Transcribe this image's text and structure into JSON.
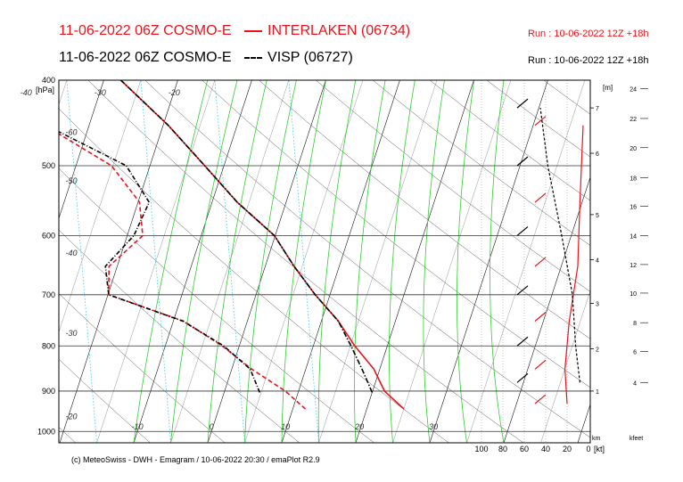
{
  "header": {
    "line1_left": "11-06-2022 06Z COSMO-E",
    "line1_right": "INTERLAKEN (06734)",
    "line2_left": "11-06-2022 06Z COSMO-E",
    "line2_right": "VISP (06727)",
    "run1": "Run : 10-06-2022 12Z +18h",
    "run2": "Run : 10-06-2022 12Z +18h"
  },
  "footer": "(c) MeteoSwiss - DWH - Emagram / 10-06-2022  20:30 / emaPlot R2.9",
  "colors": {
    "interlaken": "#e8141c",
    "visp": "#000000",
    "dry_adiabat": "#555555",
    "moist_adiabat": "#33cc33",
    "mixing_ratio": "#33ccee",
    "isobar": "#333333"
  },
  "chart_data": {
    "type": "line",
    "title": "Emagram",
    "pressure_axis": {
      "label": "[hPa]",
      "ticks": [
        400,
        500,
        600,
        700,
        800,
        900,
        1000
      ],
      "range": [
        1030,
        400
      ]
    },
    "temperature_axis": {
      "range": [
        -20,
        40
      ],
      "bottom_ticks": [
        -10,
        0,
        10,
        20,
        30
      ],
      "skew_labels_left": [
        -60,
        -50,
        -40,
        -30,
        -20
      ],
      "skew_labels_top": [
        -60,
        -50,
        -40,
        -30,
        -20
      ]
    },
    "height_axis_m": {
      "label": "[m]",
      "ticks": [
        {
          "label": "1",
          "p": 900
        },
        {
          "label": "2",
          "p": 806
        },
        {
          "label": "3",
          "p": 716
        },
        {
          "label": "4",
          "p": 639
        },
        {
          "label": "5",
          "p": 568
        },
        {
          "label": "6",
          "p": 484
        },
        {
          "label": "7",
          "p": 430
        }
      ],
      "bottom_label": "km"
    },
    "height_axis_feet": {
      "ticks": [
        {
          "label": "4",
          "p": 880
        },
        {
          "label": "6",
          "p": 812
        },
        {
          "label": "8",
          "p": 753
        },
        {
          "label": "10",
          "p": 697
        },
        {
          "label": "12",
          "p": 647
        },
        {
          "label": "14",
          "p": 600
        },
        {
          "label": "16",
          "p": 556
        },
        {
          "label": "18",
          "p": 516
        },
        {
          "label": "20",
          "p": 477
        },
        {
          "label": "22",
          "p": 442
        },
        {
          "label": "24",
          "p": 409
        }
      ],
      "bottom_label": "kfeet"
    },
    "wind_axis": {
      "label": "[kt]",
      "ticks": [
        100,
        80,
        60,
        40,
        20,
        0
      ]
    },
    "series": [
      {
        "name": "INTERLAKEN (06734)",
        "temperature": [
          {
            "p": 943,
            "t": 25.0
          },
          {
            "p": 900,
            "t": 21.6
          },
          {
            "p": 850,
            "t": 19.2
          },
          {
            "p": 800,
            "t": 15.6
          },
          {
            "p": 750,
            "t": 12.3
          },
          {
            "p": 700,
            "t": 8.0
          },
          {
            "p": 650,
            "t": 3.9
          },
          {
            "p": 600,
            "t": -0.1
          },
          {
            "p": 550,
            "t": -6.6
          },
          {
            "p": 500,
            "t": -12.6
          },
          {
            "p": 450,
            "t": -19.3
          },
          {
            "p": 400,
            "t": -27.7
          }
        ],
        "dewpoint": [
          {
            "p": 943,
            "t": 11.7
          },
          {
            "p": 900,
            "t": 8.2
          },
          {
            "p": 850,
            "t": 2.7
          },
          {
            "p": 800,
            "t": -2.3
          },
          {
            "p": 750,
            "t": -8.6
          },
          {
            "p": 700,
            "t": -19.9
          },
          {
            "p": 650,
            "t": -21.1
          },
          {
            "p": 600,
            "t": -17.9
          },
          {
            "p": 550,
            "t": -19.8
          },
          {
            "p": 500,
            "t": -25.2
          },
          {
            "p": 450,
            "t": -36.0
          },
          {
            "p": 400,
            "t": -45.0
          }
        ],
        "wind_speed_kt": [
          {
            "p": 930,
            "v": 20
          },
          {
            "p": 850,
            "v": 22
          },
          {
            "p": 750,
            "v": 18
          },
          {
            "p": 650,
            "v": 10
          },
          {
            "p": 550,
            "v": 8
          },
          {
            "p": 450,
            "v": 5
          }
        ]
      },
      {
        "name": "VISP (06727)",
        "temperature": [
          {
            "p": 903,
            "t": 20.0
          },
          {
            "p": 850,
            "t": 17.6
          },
          {
            "p": 800,
            "t": 15.1
          },
          {
            "p": 750,
            "t": 12.3
          },
          {
            "p": 700,
            "t": 8.0
          },
          {
            "p": 650,
            "t": 3.9
          },
          {
            "p": 600,
            "t": -0.1
          },
          {
            "p": 550,
            "t": -6.6
          },
          {
            "p": 500,
            "t": -12.6
          },
          {
            "p": 450,
            "t": -19.3
          },
          {
            "p": 400,
            "t": -27.7
          }
        ],
        "dewpoint": [
          {
            "p": 903,
            "t": 4.8
          },
          {
            "p": 850,
            "t": 2.5
          },
          {
            "p": 800,
            "t": -2.1
          },
          {
            "p": 750,
            "t": -8.7
          },
          {
            "p": 700,
            "t": -19.9
          },
          {
            "p": 650,
            "t": -21.6
          },
          {
            "p": 600,
            "t": -19.1
          },
          {
            "p": 550,
            "t": -18.5
          },
          {
            "p": 500,
            "t": -23.2
          },
          {
            "p": 450,
            "t": -35.8
          },
          {
            "p": 400,
            "t": -45.0
          }
        ],
        "wind_speed_kt": [
          {
            "p": 880,
            "v": 8
          },
          {
            "p": 800,
            "v": 12
          },
          {
            "p": 700,
            "v": 15
          },
          {
            "p": 600,
            "v": 25
          },
          {
            "p": 500,
            "v": 38
          },
          {
            "p": 430,
            "v": 45
          }
        ]
      }
    ]
  }
}
